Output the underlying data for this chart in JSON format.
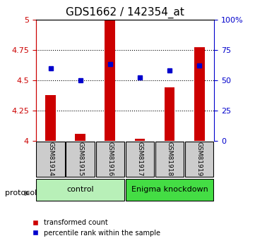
{
  "title": "GDS1662 / 142354_at",
  "samples": [
    "GSM81914",
    "GSM81915",
    "GSM81916",
    "GSM81917",
    "GSM81918",
    "GSM81919"
  ],
  "red_values": [
    4.38,
    4.06,
    5.0,
    4.02,
    4.44,
    4.77
  ],
  "blue_values": [
    4.6,
    4.5,
    4.63,
    4.52,
    4.58,
    4.62
  ],
  "ylim": [
    4.0,
    5.0
  ],
  "yticks_left": [
    4.0,
    4.25,
    4.5,
    4.75,
    5.0
  ],
  "ytick_labels_left": [
    "4",
    "4.25",
    "4.5",
    "4.75",
    "5"
  ],
  "right_ticks_pct": [
    0,
    25,
    50,
    75,
    100
  ],
  "right_tick_labels": [
    "0",
    "25",
    "50",
    "75",
    "100%"
  ],
  "protocol_label": "protocol",
  "legend_items": [
    {
      "color": "#cc0000",
      "label": "transformed count"
    },
    {
      "color": "#0000cc",
      "label": "percentile rank within the sample"
    }
  ],
  "bar_color": "#cc0000",
  "dot_color": "#0000cc",
  "sample_bg_color": "#cccccc",
  "left_axis_color": "#cc0000",
  "right_axis_color": "#0000cc",
  "group_defs": [
    {
      "start": 0,
      "end": 2,
      "label": "control",
      "color": "#b8f0b8"
    },
    {
      "start": 3,
      "end": 5,
      "label": "Enigma knockdown",
      "color": "#44dd44"
    }
  ]
}
